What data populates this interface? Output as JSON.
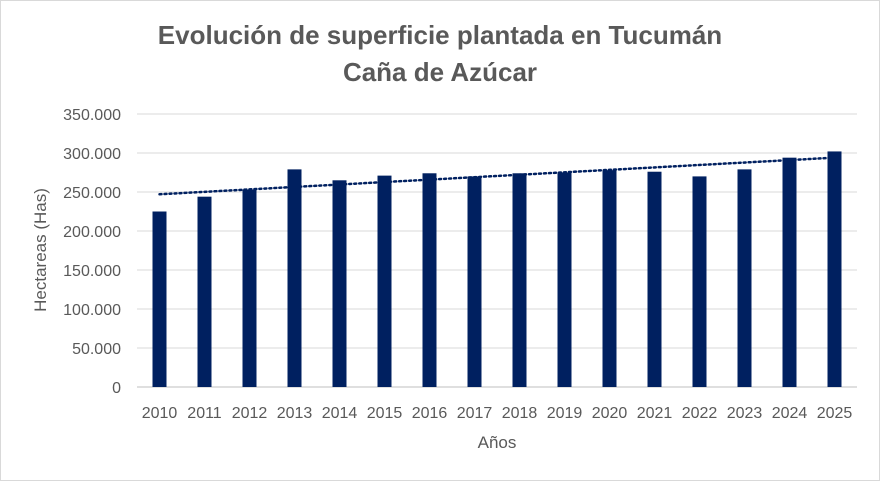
{
  "chart_data": {
    "type": "bar",
    "title_line1": "Evolución de superficie plantada en Tucumán",
    "title_line2": "Caña de Azúcar",
    "xlabel": "Años",
    "ylabel": "Hectareas (Has)",
    "categories": [
      "2010",
      "2011",
      "2012",
      "2013",
      "2014",
      "2015",
      "2016",
      "2017",
      "2018",
      "2019",
      "2020",
      "2021",
      "2022",
      "2023",
      "2024",
      "2025"
    ],
    "series": [
      {
        "values": [
          225000,
          244000,
          253000,
          279000,
          265000,
          271000,
          274000,
          270000,
          274000,
          275000,
          278000,
          276000,
          270000,
          279000,
          294000,
          302000
        ],
        "color": "#002060"
      }
    ],
    "trendline": {
      "style": "dotted-linear",
      "color": "#002060"
    },
    "ylim": [
      0,
      350000
    ],
    "yticks": [
      0,
      50000,
      100000,
      150000,
      200000,
      250000,
      300000,
      350000
    ],
    "ytick_labels": [
      "0",
      "50.000",
      "100.000",
      "150.000",
      "200.000",
      "250.000",
      "300.000",
      "350.000"
    ],
    "grid": true,
    "legend": "none"
  }
}
